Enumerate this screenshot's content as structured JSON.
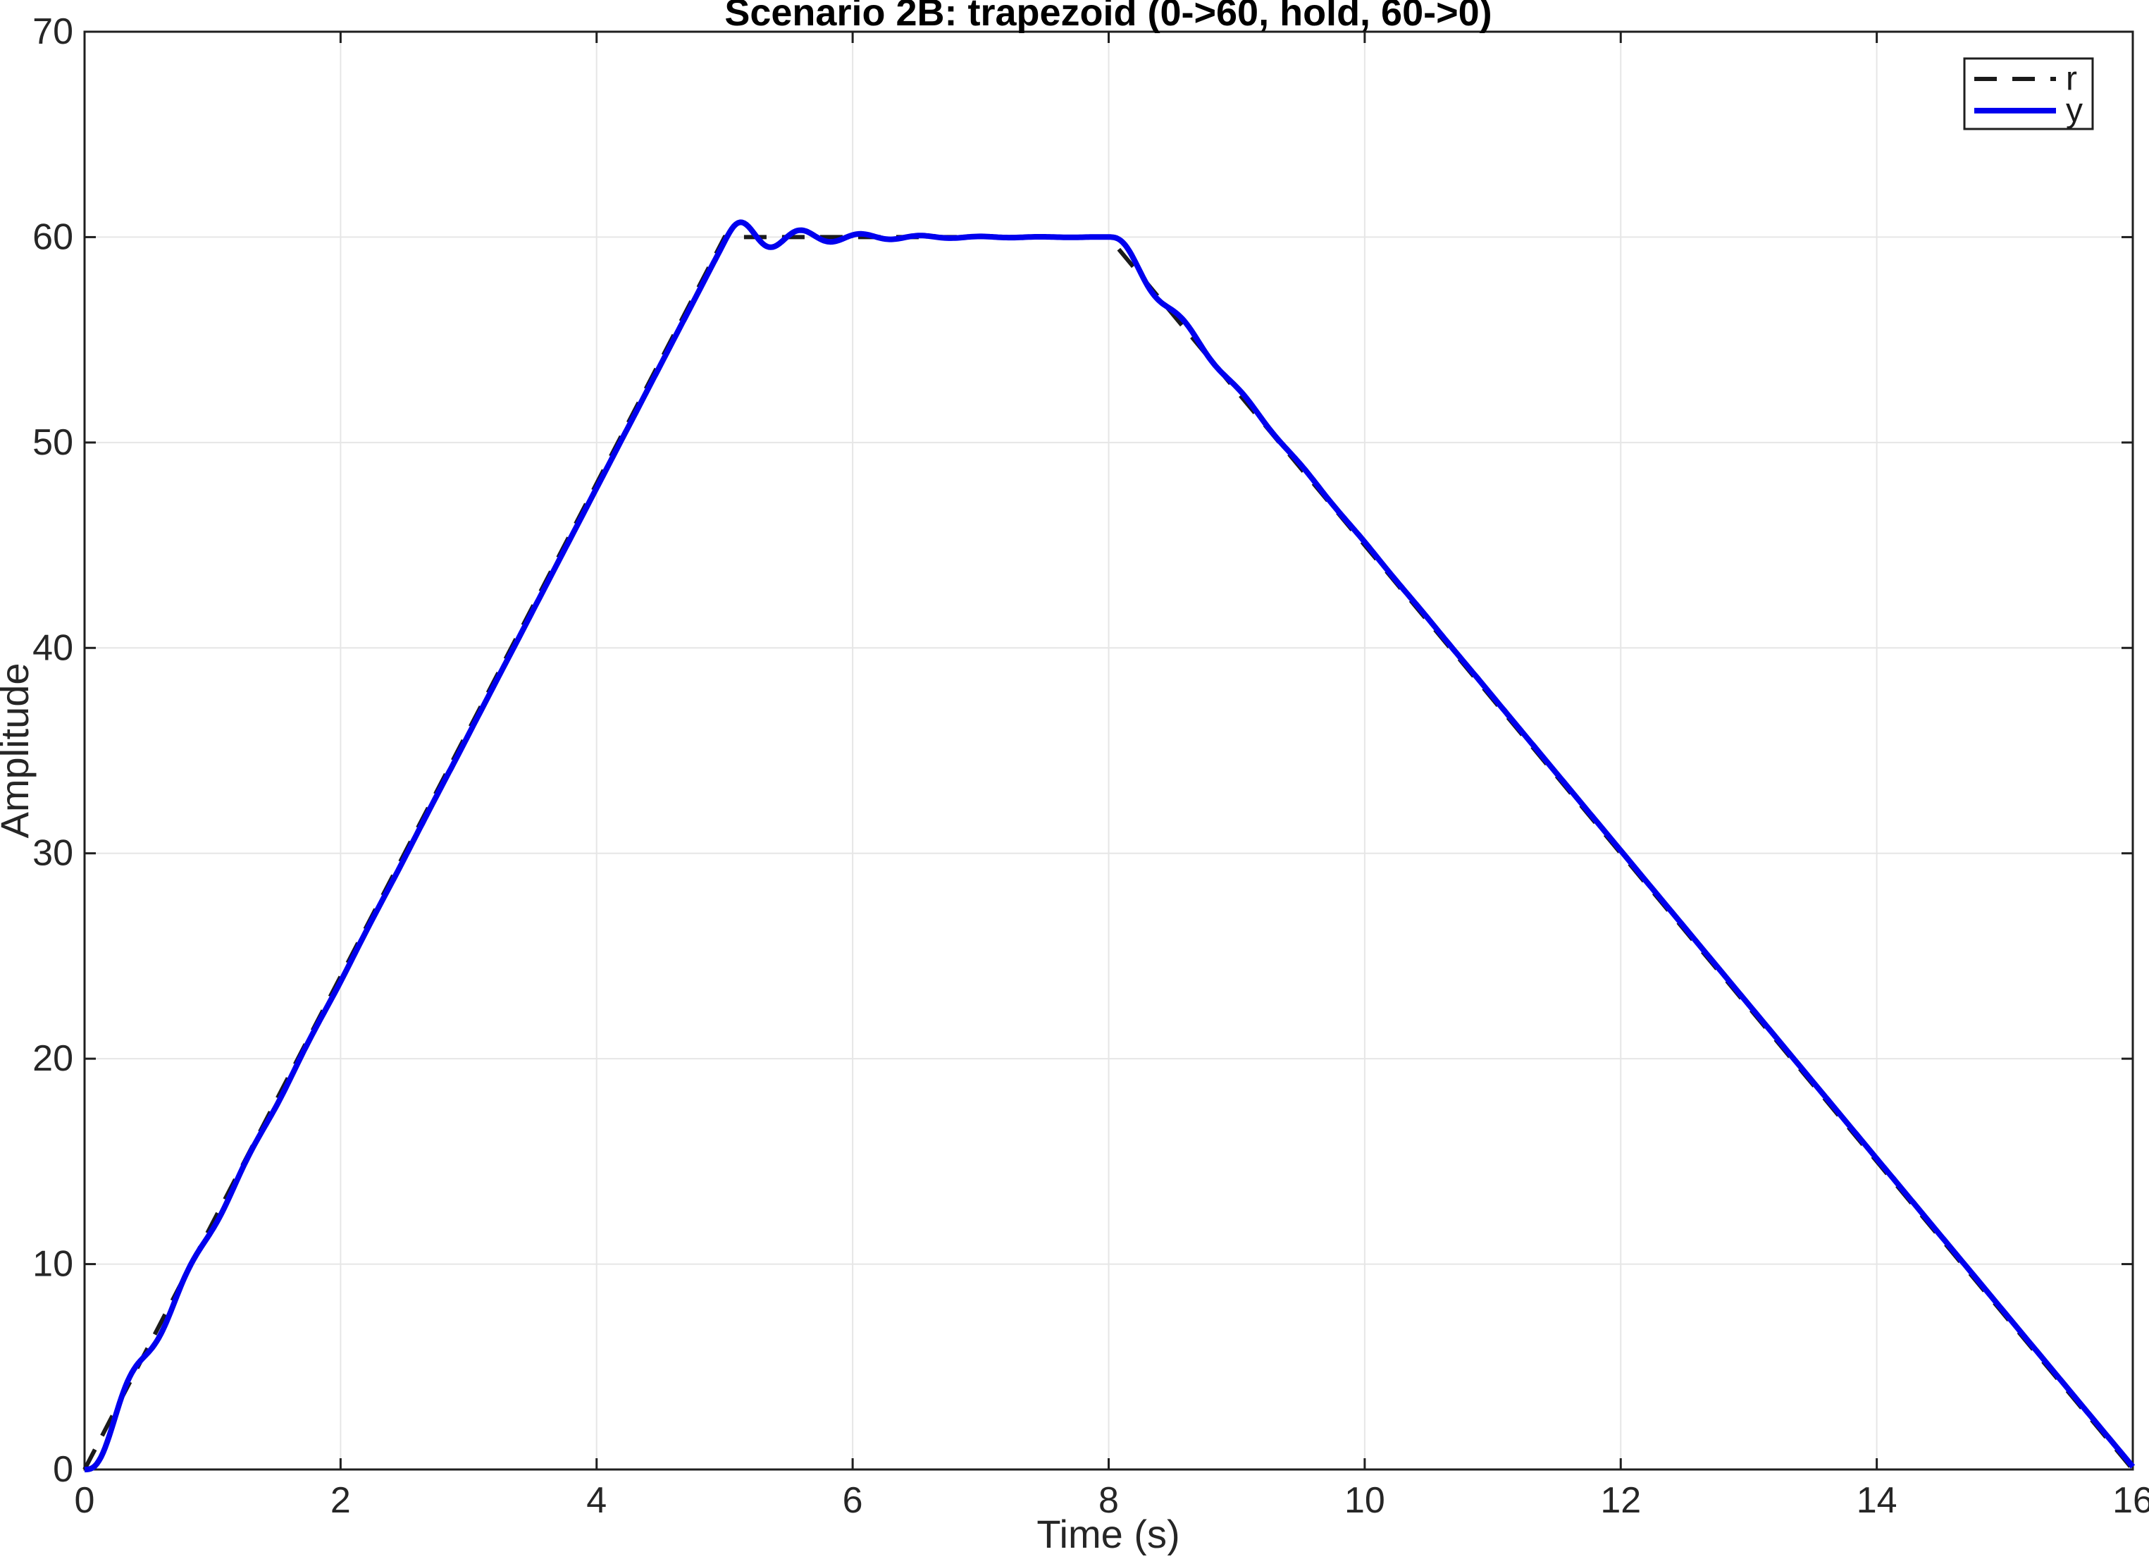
{
  "page": {
    "background": "#ffffff"
  },
  "colors": {
    "response_blue": "#0000ee",
    "reference_black": "#1a1a1a",
    "grid": "#e6e6e6",
    "axis": "#1f1f1f",
    "tick_label": "#262626",
    "legend_border": "#1f1f1f",
    "legend_bg": "#ffffff"
  },
  "chart_data": {
    "type": "line",
    "title": "Scenario 2B: trapezoid (0->60, hold, 60->0)",
    "xlabel": "Time (s)",
    "ylabel": "Amplitude",
    "xlim": [
      0,
      16
    ],
    "ylim": [
      0,
      70
    ],
    "xticks": [
      0,
      2,
      4,
      6,
      8,
      10,
      12,
      14,
      16
    ],
    "yticks": [
      0,
      10,
      20,
      30,
      40,
      50,
      60,
      70
    ],
    "grid": true,
    "box": true,
    "legend": {
      "position": "top-right",
      "entries": [
        {
          "label": "r",
          "line": "dashed",
          "color": "#1a1a1a"
        },
        {
          "label": "y",
          "line": "solid",
          "color": "#0000ee"
        }
      ]
    },
    "series": [
      {
        "name": "r",
        "role": "reference",
        "line": "dashed",
        "color": "#1a1a1a",
        "points": [
          [
            0,
            0
          ],
          [
            5,
            60
          ],
          [
            8,
            60
          ],
          [
            16,
            0
          ]
        ],
        "description": "Trapezoid reference: ramp 0 to 60 over 0-5 s (slope 12/s), hold 60 from 5-8 s, ramp 60 to 0 over 8-16 s (slope -7.5/s)"
      },
      {
        "name": "y",
        "role": "response",
        "line": "solid",
        "color": "#0000ee",
        "model": {
          "kind": "second-order tracking ODE: y'' = omega^2*(r - y) - 2*zeta*omega*y'",
          "zeta": 0.12,
          "omega": 13.5,
          "dt": 0.002,
          "t_end": 16,
          "sample_every_steps": 8
        },
        "key_points": [
          [
            0,
            0
          ],
          [
            0.2,
            0.5
          ],
          [
            0.65,
            7.0
          ],
          [
            1.0,
            11.7
          ],
          [
            2,
            23.8
          ],
          [
            3,
            35.8
          ],
          [
            4,
            47.8
          ],
          [
            5,
            59.5
          ],
          [
            5.12,
            60.85
          ],
          [
            5.35,
            59.4
          ],
          [
            5.6,
            60.4
          ],
          [
            5.85,
            59.7
          ],
          [
            6.1,
            60.15
          ],
          [
            6.5,
            60.05
          ],
          [
            7,
            60.0
          ],
          [
            8,
            60.0
          ],
          [
            8.3,
            58.6
          ],
          [
            8.55,
            56.4
          ],
          [
            9,
            53.0
          ],
          [
            10,
            45.2
          ],
          [
            12,
            30.2
          ],
          [
            14,
            15.2
          ],
          [
            16,
            0.2
          ]
        ]
      }
    ]
  }
}
